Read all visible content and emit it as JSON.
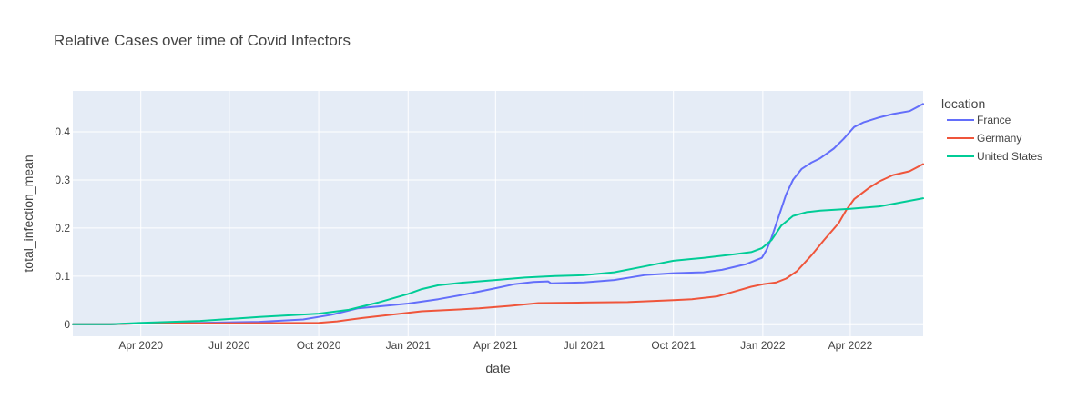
{
  "chart_data": {
    "type": "line",
    "title": "Relative Cases over time of Covid Infectors",
    "xlabel": "date",
    "ylabel": "total_infection_mean",
    "x_ticks": [
      "Apr 2020",
      "Jul 2020",
      "Oct 2020",
      "Jan 2021",
      "Apr 2021",
      "Jul 2021",
      "Oct 2021",
      "Jan 2022",
      "Apr 2022"
    ],
    "y_ticks": [
      "0",
      "0.1",
      "0.2",
      "0.3",
      "0.4"
    ],
    "ylim": [
      -0.025,
      0.485
    ],
    "xlim": [
      "2020-01-22",
      "2022-06-15"
    ],
    "grid": true,
    "legend": {
      "title": "location",
      "placement": "right"
    },
    "series": [
      {
        "name": "France",
        "color": "#636efa",
        "x": [
          "2020-01-22",
          "2020-03-01",
          "2020-04-01",
          "2020-06-01",
          "2020-08-01",
          "2020-09-15",
          "2020-10-15",
          "2020-11-10",
          "2020-12-01",
          "2021-01-01",
          "2021-02-01",
          "2021-03-01",
          "2021-04-01",
          "2021-04-20",
          "2021-05-10",
          "2021-05-25",
          "2021-05-28",
          "2021-07-01",
          "2021-08-01",
          "2021-09-01",
          "2021-10-01",
          "2021-11-01",
          "2021-11-20",
          "2021-12-15",
          "2021-12-31",
          "2022-01-05",
          "2022-01-10",
          "2022-01-20",
          "2022-01-25",
          "2022-02-01",
          "2022-02-10",
          "2022-02-20",
          "2022-03-01",
          "2022-03-15",
          "2022-03-25",
          "2022-04-05",
          "2022-04-15",
          "2022-05-01",
          "2022-05-15",
          "2022-06-01",
          "2022-06-15"
        ],
        "y": [
          0,
          0,
          0.002,
          0.003,
          0.005,
          0.01,
          0.02,
          0.033,
          0.037,
          0.043,
          0.052,
          0.062,
          0.075,
          0.083,
          0.088,
          0.089,
          0.085,
          0.087,
          0.092,
          0.102,
          0.106,
          0.108,
          0.113,
          0.125,
          0.138,
          0.155,
          0.18,
          0.24,
          0.27,
          0.3,
          0.323,
          0.336,
          0.345,
          0.365,
          0.385,
          0.41,
          0.42,
          0.43,
          0.437,
          0.443,
          0.458
        ]
      },
      {
        "name": "Germany",
        "color": "#ef553b",
        "x": [
          "2020-01-22",
          "2020-03-01",
          "2020-04-01",
          "2020-07-01",
          "2020-10-01",
          "2020-10-20",
          "2020-11-15",
          "2020-12-15",
          "2021-01-15",
          "2021-02-15",
          "2021-03-15",
          "2021-04-15",
          "2021-05-15",
          "2021-07-01",
          "2021-08-15",
          "2021-10-01",
          "2021-10-20",
          "2021-11-15",
          "2021-12-01",
          "2021-12-20",
          "2022-01-01",
          "2022-01-15",
          "2022-01-25",
          "2022-02-05",
          "2022-02-20",
          "2022-03-05",
          "2022-03-20",
          "2022-03-28",
          "2022-04-05",
          "2022-04-20",
          "2022-05-01",
          "2022-05-15",
          "2022-06-01",
          "2022-06-15"
        ],
        "y": [
          0,
          0,
          0.002,
          0.002,
          0.003,
          0.006,
          0.013,
          0.02,
          0.027,
          0.03,
          0.033,
          0.038,
          0.044,
          0.045,
          0.046,
          0.05,
          0.052,
          0.058,
          0.067,
          0.078,
          0.083,
          0.087,
          0.095,
          0.11,
          0.143,
          0.175,
          0.21,
          0.238,
          0.26,
          0.283,
          0.297,
          0.31,
          0.318,
          0.333
        ]
      },
      {
        "name": "United States",
        "color": "#00cc96",
        "x": [
          "2020-01-22",
          "2020-03-01",
          "2020-04-01",
          "2020-06-01",
          "2020-08-01",
          "2020-10-01",
          "2020-11-01",
          "2020-12-01",
          "2021-01-01",
          "2021-01-15",
          "2021-02-01",
          "2021-03-01",
          "2021-04-01",
          "2021-05-01",
          "2021-06-01",
          "2021-07-01",
          "2021-08-01",
          "2021-09-01",
          "2021-10-01",
          "2021-11-01",
          "2021-12-01",
          "2021-12-20",
          "2021-12-31",
          "2022-01-10",
          "2022-01-20",
          "2022-02-01",
          "2022-02-15",
          "2022-03-01",
          "2022-04-01",
          "2022-05-01",
          "2022-06-15"
        ],
        "y": [
          0,
          0,
          0.003,
          0.007,
          0.015,
          0.022,
          0.03,
          0.045,
          0.063,
          0.073,
          0.081,
          0.087,
          0.092,
          0.097,
          0.1,
          0.102,
          0.108,
          0.12,
          0.132,
          0.138,
          0.145,
          0.15,
          0.158,
          0.175,
          0.205,
          0.225,
          0.233,
          0.236,
          0.24,
          0.245,
          0.262
        ]
      }
    ]
  }
}
